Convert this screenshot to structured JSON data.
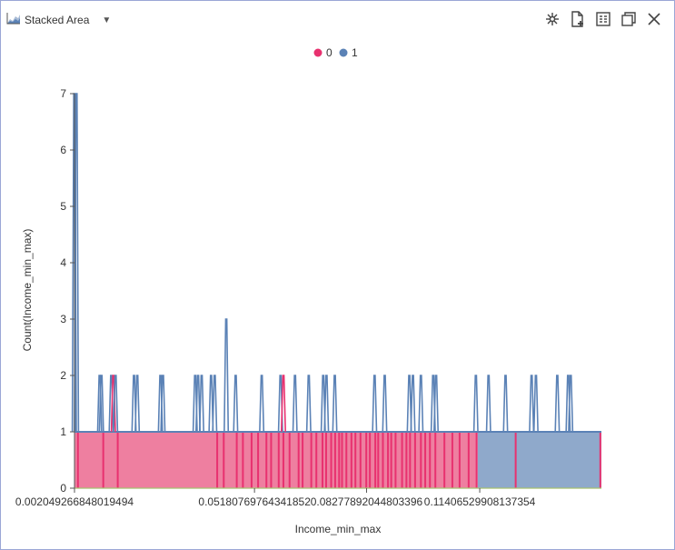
{
  "header": {
    "chart_type_label": "Stacked Area"
  },
  "toolbar": {
    "icons": [
      "asterisk-icon",
      "new-document-icon",
      "data-table-icon",
      "maximize-icon",
      "close-icon"
    ]
  },
  "colors": {
    "series0": "#e8316f",
    "series1": "#5b82b6",
    "area0": "#ee7fa0",
    "area1": "#8fa9cb",
    "axis": "#555555"
  },
  "chart_data": {
    "type": "area",
    "stacked": true,
    "title": "",
    "xlabel": "Income_min_max",
    "ylabel": "Count(Income_min_max)",
    "ylim": [
      0,
      7
    ],
    "xlim": [
      0.0020492668480194,
      0.1477
    ],
    "yticks": [
      0,
      1,
      2,
      3,
      4,
      5,
      6,
      7
    ],
    "xticks": [
      {
        "value": 0.0020492668480194,
        "label": "0.002049266848019494"
      },
      {
        "value": 0.0518076976434185,
        "label": "0.05180769764341852"
      },
      {
        "value": 0.082778920448034,
        "label": "0.08277892044803396"
      },
      {
        "value": 0.1140652990813735,
        "label": "0.11406529908137354"
      }
    ],
    "legend": {
      "position": "top-center",
      "entries": [
        "0",
        "1"
      ]
    },
    "series": [
      {
        "name": "0",
        "segments": [
          [
            0.002,
            0.1135,
            1
          ]
        ]
      },
      {
        "name": "1",
        "segments": [
          [
            0.002,
            0.0024,
            6
          ],
          [
            0.1135,
            0.1477,
            1
          ]
        ]
      }
    ],
    "pink_stripes": [
      0.003,
      0.01,
      0.014,
      0.0415,
      0.0433,
      0.0469,
      0.0486,
      0.051,
      0.0528,
      0.0551,
      0.0564,
      0.0585,
      0.0598,
      0.0615,
      0.064,
      0.0651,
      0.0675,
      0.0689,
      0.0706,
      0.0716,
      0.073,
      0.0741,
      0.0752,
      0.076,
      0.0772,
      0.0786,
      0.0797,
      0.0811,
      0.0827,
      0.0837,
      0.0852,
      0.086,
      0.0873,
      0.0887,
      0.0896,
      0.0908,
      0.0926,
      0.0938,
      0.0948,
      0.0962,
      0.0978,
      0.099,
      0.1003,
      0.1018,
      0.1043,
      0.1065,
      0.1085,
      0.111,
      0.1132,
      0.124,
      0.1474
    ],
    "spikes": [
      {
        "x": 0.002,
        "y": 7,
        "s": "1"
      },
      {
        "x": 0.0026,
        "y": 7,
        "s": "1"
      },
      {
        "x": 0.009,
        "y": 2,
        "s": "1"
      },
      {
        "x": 0.0095,
        "y": 2,
        "s": "1"
      },
      {
        "x": 0.0122,
        "y": 2,
        "s": "1"
      },
      {
        "x": 0.0128,
        "y": 2,
        "s": "0"
      },
      {
        "x": 0.0134,
        "y": 2,
        "s": "1"
      },
      {
        "x": 0.0185,
        "y": 2,
        "s": "1"
      },
      {
        "x": 0.0194,
        "y": 2,
        "s": "1"
      },
      {
        "x": 0.0258,
        "y": 2,
        "s": "1"
      },
      {
        "x": 0.0265,
        "y": 2,
        "s": "1"
      },
      {
        "x": 0.0354,
        "y": 2,
        "s": "1"
      },
      {
        "x": 0.0362,
        "y": 2,
        "s": "1"
      },
      {
        "x": 0.0372,
        "y": 2,
        "s": "1"
      },
      {
        "x": 0.0398,
        "y": 2,
        "s": "1"
      },
      {
        "x": 0.0408,
        "y": 2,
        "s": "1"
      },
      {
        "x": 0.044,
        "y": 3,
        "s": "1"
      },
      {
        "x": 0.0466,
        "y": 2,
        "s": "1"
      },
      {
        "x": 0.0538,
        "y": 2,
        "s": "1"
      },
      {
        "x": 0.059,
        "y": 2,
        "s": "1"
      },
      {
        "x": 0.0598,
        "y": 2,
        "s": "0"
      },
      {
        "x": 0.063,
        "y": 2,
        "s": "1"
      },
      {
        "x": 0.0668,
        "y": 2,
        "s": "1"
      },
      {
        "x": 0.0708,
        "y": 2,
        "s": "1"
      },
      {
        "x": 0.0717,
        "y": 2,
        "s": "1"
      },
      {
        "x": 0.074,
        "y": 2,
        "s": "1"
      },
      {
        "x": 0.085,
        "y": 2,
        "s": "1"
      },
      {
        "x": 0.0878,
        "y": 2,
        "s": "1"
      },
      {
        "x": 0.0946,
        "y": 2,
        "s": "1"
      },
      {
        "x": 0.0956,
        "y": 2,
        "s": "1"
      },
      {
        "x": 0.0978,
        "y": 2,
        "s": "1"
      },
      {
        "x": 0.1012,
        "y": 2,
        "s": "1"
      },
      {
        "x": 0.102,
        "y": 2,
        "s": "1"
      },
      {
        "x": 0.113,
        "y": 2,
        "s": "1"
      },
      {
        "x": 0.1165,
        "y": 2,
        "s": "1"
      },
      {
        "x": 0.1212,
        "y": 2,
        "s": "1"
      },
      {
        "x": 0.1284,
        "y": 2,
        "s": "1"
      },
      {
        "x": 0.1296,
        "y": 2,
        "s": "1"
      },
      {
        "x": 0.1355,
        "y": 2,
        "s": "1"
      },
      {
        "x": 0.1385,
        "y": 2,
        "s": "1"
      },
      {
        "x": 0.1392,
        "y": 2,
        "s": "1"
      }
    ]
  }
}
